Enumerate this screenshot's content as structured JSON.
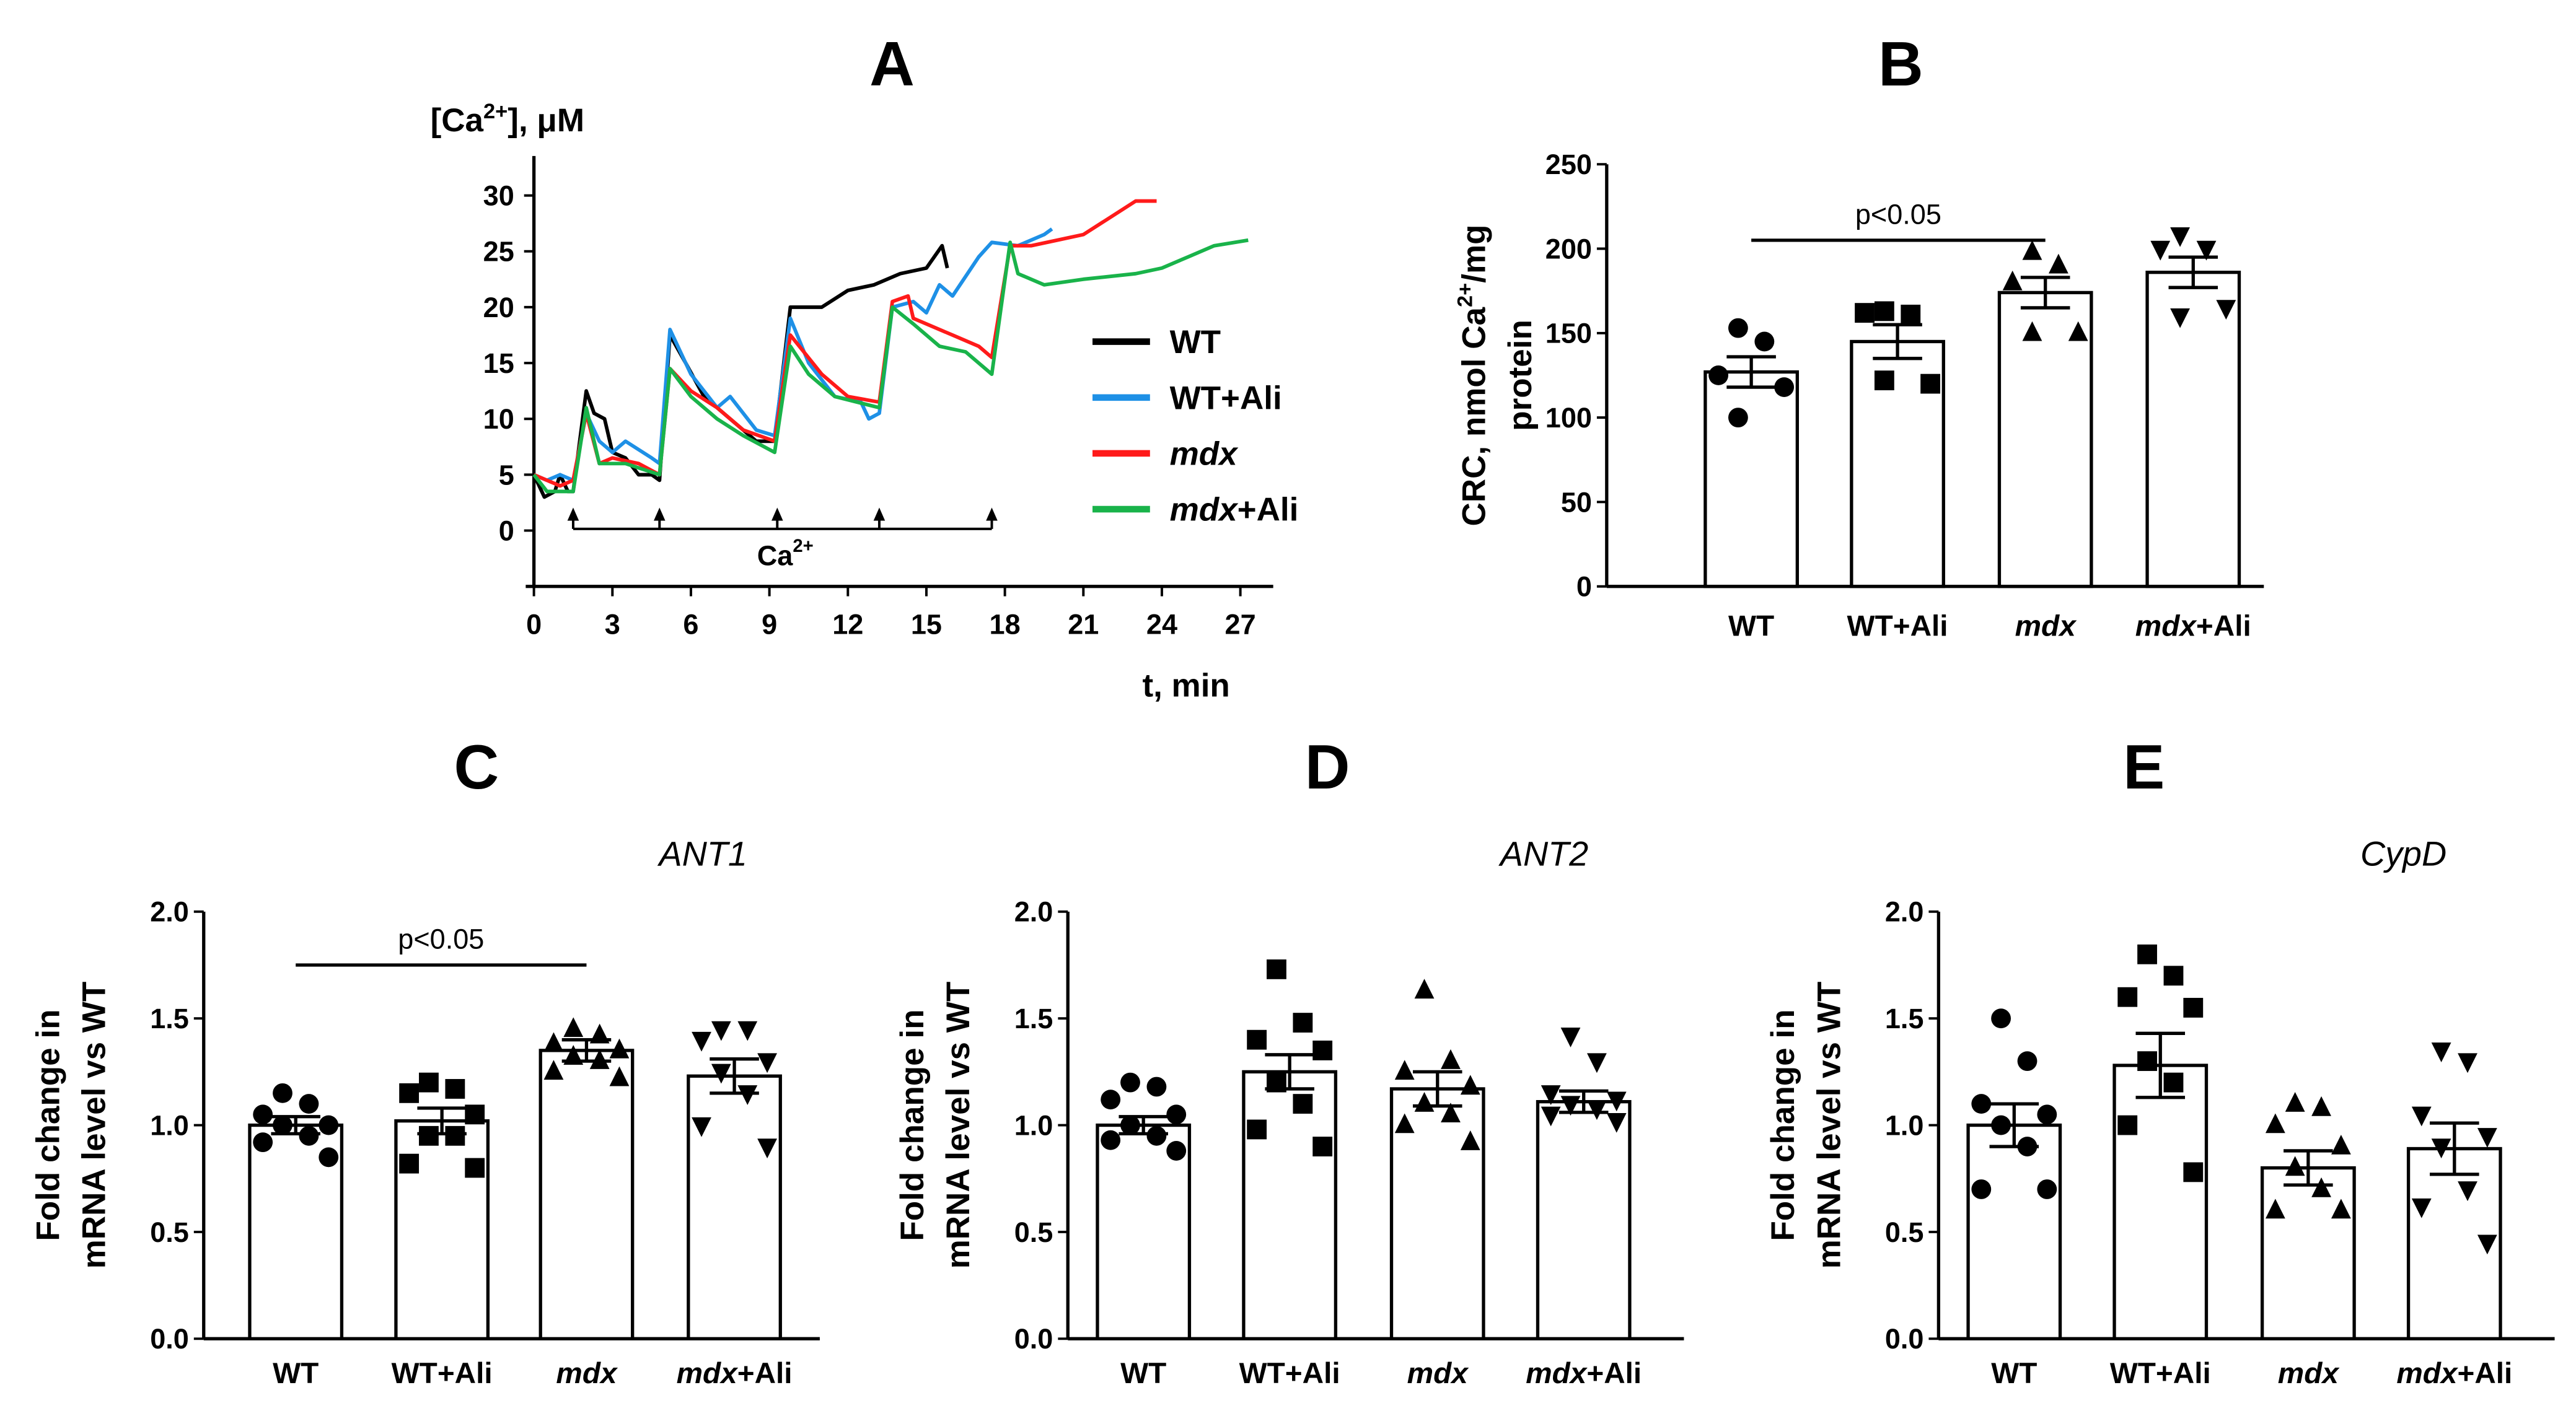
{
  "chart_data": [
    {
      "id": "A",
      "type": "line",
      "panel_label": "A",
      "ylabel": "[Ca2+], μM",
      "ylabel_parts": {
        "base": "[Ca",
        "sup": "2+",
        "rest": "], μM"
      },
      "xlabel": "t, min",
      "xlim": [
        0,
        27
      ],
      "ylim": [
        0,
        30
      ],
      "xticks": [
        0,
        3,
        6,
        9,
        12,
        15,
        18,
        21,
        24,
        27
      ],
      "yticks": [
        0,
        5,
        10,
        15,
        20,
        25,
        30
      ],
      "annotation": {
        "base": "Ca",
        "sup": "2+",
        "arrow_times": [
          1.5,
          4.8,
          9.3,
          13.2,
          17.5
        ]
      },
      "legend_position": "right",
      "series": [
        {
          "name": "WT",
          "italic": "",
          "suffix": "WT",
          "color": "#000000",
          "points": [
            [
              0,
              5
            ],
            [
              0.4,
              3
            ],
            [
              0.8,
              3.5
            ],
            [
              1,
              5
            ],
            [
              1.3,
              3.5
            ],
            [
              1.5,
              3.5
            ],
            [
              2,
              12.5
            ],
            [
              2.3,
              10.5
            ],
            [
              2.7,
              10
            ],
            [
              3,
              7
            ],
            [
              3.5,
              6.5
            ],
            [
              4,
              5
            ],
            [
              4.5,
              5
            ],
            [
              4.8,
              4.5
            ],
            [
              5.2,
              17.5
            ],
            [
              5.8,
              15
            ],
            [
              6.5,
              12
            ],
            [
              7.5,
              10
            ],
            [
              8.5,
              8
            ],
            [
              9.2,
              8
            ],
            [
              9.8,
              20
            ],
            [
              11,
              20
            ],
            [
              12,
              21.5
            ],
            [
              13,
              22
            ],
            [
              14,
              23
            ],
            [
              15,
              23.5
            ],
            [
              15.6,
              25.5
            ],
            [
              15.8,
              23.5
            ]
          ]
        },
        {
          "name": "WT+Ali",
          "italic": "",
          "suffix": "WT+Ali",
          "color": "#1e90e6",
          "points": [
            [
              0,
              5
            ],
            [
              0.5,
              4.5
            ],
            [
              1,
              5
            ],
            [
              1.5,
              4.5
            ],
            [
              2,
              10.5
            ],
            [
              2.5,
              8
            ],
            [
              3,
              7
            ],
            [
              3.5,
              8
            ],
            [
              4.5,
              6.5
            ],
            [
              4.8,
              6
            ],
            [
              5.2,
              18
            ],
            [
              6,
              14
            ],
            [
              7,
              11
            ],
            [
              7.5,
              12
            ],
            [
              8.5,
              9
            ],
            [
              9.2,
              8.5
            ],
            [
              9.8,
              19
            ],
            [
              10.5,
              15
            ],
            [
              11.5,
              12
            ],
            [
              12.5,
              11.5
            ],
            [
              12.8,
              10
            ],
            [
              13.2,
              10.5
            ],
            [
              13.7,
              20
            ],
            [
              14.5,
              20.5
            ],
            [
              15,
              19.5
            ],
            [
              15.5,
              22
            ],
            [
              16,
              21
            ],
            [
              17,
              24.5
            ],
            [
              17.5,
              25.8
            ],
            [
              18.5,
              25.5
            ],
            [
              19.5,
              26.5
            ],
            [
              19.8,
              27
            ]
          ]
        },
        {
          "name": "mdx",
          "italic": "mdx",
          "suffix": "",
          "color": "#ff1a1a",
          "points": [
            [
              0,
              5
            ],
            [
              0.5,
              4.5
            ],
            [
              1,
              4
            ],
            [
              1.5,
              4.5
            ],
            [
              2,
              10.5
            ],
            [
              2.5,
              6
            ],
            [
              3,
              6.5
            ],
            [
              4,
              6
            ],
            [
              4.8,
              5
            ],
            [
              5.2,
              14.5
            ],
            [
              6,
              12.5
            ],
            [
              7,
              11
            ],
            [
              8,
              9
            ],
            [
              9.2,
              8
            ],
            [
              9.8,
              17.5
            ],
            [
              11,
              14
            ],
            [
              12,
              12
            ],
            [
              13.2,
              11.5
            ],
            [
              13.7,
              20.5
            ],
            [
              14.3,
              21
            ],
            [
              14.5,
              19
            ],
            [
              16,
              17.5
            ],
            [
              17,
              16.5
            ],
            [
              17.5,
              15.5
            ],
            [
              18.2,
              25.5
            ],
            [
              19,
              25.5
            ],
            [
              20,
              26
            ],
            [
              21,
              26.5
            ],
            [
              22,
              28
            ],
            [
              23,
              29.5
            ],
            [
              23.8,
              29.5
            ]
          ]
        },
        {
          "name": "mdx+Ali",
          "italic": "mdx",
          "suffix": "+Ali",
          "color": "#19b34a",
          "points": [
            [
              0,
              5
            ],
            [
              0.5,
              3.5
            ],
            [
              1.5,
              3.5
            ],
            [
              2,
              11
            ],
            [
              2.5,
              6
            ],
            [
              3.5,
              6
            ],
            [
              4.8,
              5
            ],
            [
              5.2,
              14.5
            ],
            [
              6,
              12
            ],
            [
              7,
              10
            ],
            [
              8,
              8.5
            ],
            [
              9.2,
              7
            ],
            [
              9.8,
              16.5
            ],
            [
              10.5,
              14
            ],
            [
              11.5,
              12
            ],
            [
              13.2,
              11
            ],
            [
              13.7,
              20
            ],
            [
              14.5,
              18.5
            ],
            [
              15.5,
              16.5
            ],
            [
              16.5,
              16
            ],
            [
              17.5,
              14
            ],
            [
              18.2,
              25.8
            ],
            [
              18.5,
              23
            ],
            [
              19.5,
              22
            ],
            [
              21,
              22.5
            ],
            [
              23,
              23
            ],
            [
              24,
              23.5
            ],
            [
              25,
              24.5
            ],
            [
              26,
              25.5
            ],
            [
              27.3,
              26
            ]
          ]
        }
      ]
    },
    {
      "id": "B",
      "type": "bar",
      "panel_label": "B",
      "ylabel_line1": {
        "base": "CRC, nmol Ca",
        "sup": "2+",
        "rest": "/mg"
      },
      "ylabel_line2": "protein",
      "ylim": [
        0,
        250
      ],
      "yticks": [
        0,
        50,
        100,
        150,
        200,
        250
      ],
      "categories": [
        {
          "italic": "",
          "rest": "WT"
        },
        {
          "italic": "",
          "rest": "WT+Ali"
        },
        {
          "italic": "mdx",
          "rest": ""
        },
        {
          "italic": "mdx",
          "rest": "+Ali"
        }
      ],
      "means": [
        127,
        145,
        174,
        186
      ],
      "sem": [
        9,
        10,
        9,
        9
      ],
      "markers": [
        "circle",
        "square",
        "triangle-up",
        "triangle-down"
      ],
      "points": [
        [
          153,
          145,
          125,
          118,
          100
        ],
        [
          163,
          161,
          162,
          120,
          122
        ],
        [
          198,
          190,
          180,
          150,
          150
        ],
        [
          208,
          200,
          200,
          165,
          160
        ]
      ],
      "significance": {
        "from": 0,
        "to": 2,
        "level": 205,
        "text": "p<0.05"
      }
    },
    {
      "id": "C",
      "type": "bar",
      "panel_label": "C",
      "title": "ANT1",
      "ylabel_line1": "Fold change in",
      "ylabel_line2": "mRNA level vs WT",
      "ylim": [
        0,
        2
      ],
      "yticks": [
        "0.0",
        "0.5",
        "1.0",
        "1.5",
        "2.0"
      ],
      "categories": [
        {
          "italic": "",
          "rest": "WT"
        },
        {
          "italic": "",
          "rest": "WT+Ali"
        },
        {
          "italic": "mdx",
          "rest": ""
        },
        {
          "italic": "mdx",
          "rest": "+Ali"
        }
      ],
      "means": [
        1.0,
        1.02,
        1.35,
        1.23
      ],
      "sem": [
        0.04,
        0.06,
        0.05,
        0.08
      ],
      "markers": [
        "circle",
        "square",
        "triangle-up",
        "triangle-down"
      ],
      "points": [
        [
          1.15,
          1.1,
          1.05,
          1.0,
          1.0,
          0.95,
          0.92,
          0.85
        ],
        [
          1.2,
          1.17,
          1.15,
          1.05,
          0.95,
          0.95,
          0.82,
          0.8
        ],
        [
          1.45,
          1.42,
          1.38,
          1.35,
          1.32,
          1.3,
          1.25,
          1.22
        ],
        [
          1.45,
          1.45,
          1.4,
          1.3,
          1.25,
          1.15,
          1.0,
          0.9
        ]
      ],
      "significance": {
        "from": 0,
        "to": 2,
        "level": 1.75,
        "text": "p<0.05"
      }
    },
    {
      "id": "D",
      "type": "bar",
      "panel_label": "D",
      "title": "ANT2",
      "ylabel_line1": "Fold change in",
      "ylabel_line2": "mRNA level vs WT",
      "ylim": [
        0,
        2
      ],
      "yticks": [
        "0.0",
        "0.5",
        "1.0",
        "1.5",
        "2.0"
      ],
      "categories": [
        {
          "italic": "",
          "rest": "WT"
        },
        {
          "italic": "",
          "rest": "WT+Ali"
        },
        {
          "italic": "mdx",
          "rest": ""
        },
        {
          "italic": "mdx",
          "rest": "+Ali"
        }
      ],
      "means": [
        1.0,
        1.25,
        1.17,
        1.11
      ],
      "sem": [
        0.04,
        0.08,
        0.08,
        0.05
      ],
      "markers": [
        "circle",
        "square",
        "triangle-up",
        "triangle-down"
      ],
      "points": [
        [
          1.2,
          1.18,
          1.12,
          1.05,
          1.0,
          0.95,
          0.93,
          0.88
        ],
        [
          1.73,
          1.48,
          1.4,
          1.35,
          1.2,
          1.1,
          0.98,
          0.9
        ],
        [
          1.63,
          1.3,
          1.25,
          1.18,
          1.1,
          1.05,
          1.0,
          0.92
        ],
        [
          1.42,
          1.3,
          1.15,
          1.12,
          1.1,
          1.08,
          1.05,
          1.02
        ]
      ]
    },
    {
      "id": "E",
      "type": "bar",
      "panel_label": "E",
      "title": "CypD",
      "ylabel_line1": "Fold change in",
      "ylabel_line2": "mRNA level vs WT",
      "ylim": [
        0,
        2
      ],
      "yticks": [
        "0.0",
        "0.5",
        "1.0",
        "1.5",
        "2.0"
      ],
      "categories": [
        {
          "italic": "",
          "rest": "WT"
        },
        {
          "italic": "",
          "rest": "WT+Ali"
        },
        {
          "italic": "mdx",
          "rest": ""
        },
        {
          "italic": "mdx",
          "rest": "+Ali"
        }
      ],
      "means": [
        1.0,
        1.28,
        0.8,
        0.89
      ],
      "sem": [
        0.1,
        0.15,
        0.08,
        0.12
      ],
      "markers": [
        "circle",
        "square",
        "triangle-up",
        "triangle-down"
      ],
      "points": [
        [
          1.5,
          1.3,
          1.1,
          1.05,
          1.0,
          0.9,
          0.7,
          0.7
        ],
        [
          1.8,
          1.7,
          1.6,
          1.55,
          1.3,
          1.2,
          1.0,
          0.78
        ],
        [
          1.1,
          1.08,
          1.0,
          0.9,
          0.8,
          0.7,
          0.6,
          0.6
        ],
        [
          1.35,
          1.3,
          1.05,
          0.95,
          0.9,
          0.7,
          0.62,
          0.45
        ]
      ]
    }
  ]
}
